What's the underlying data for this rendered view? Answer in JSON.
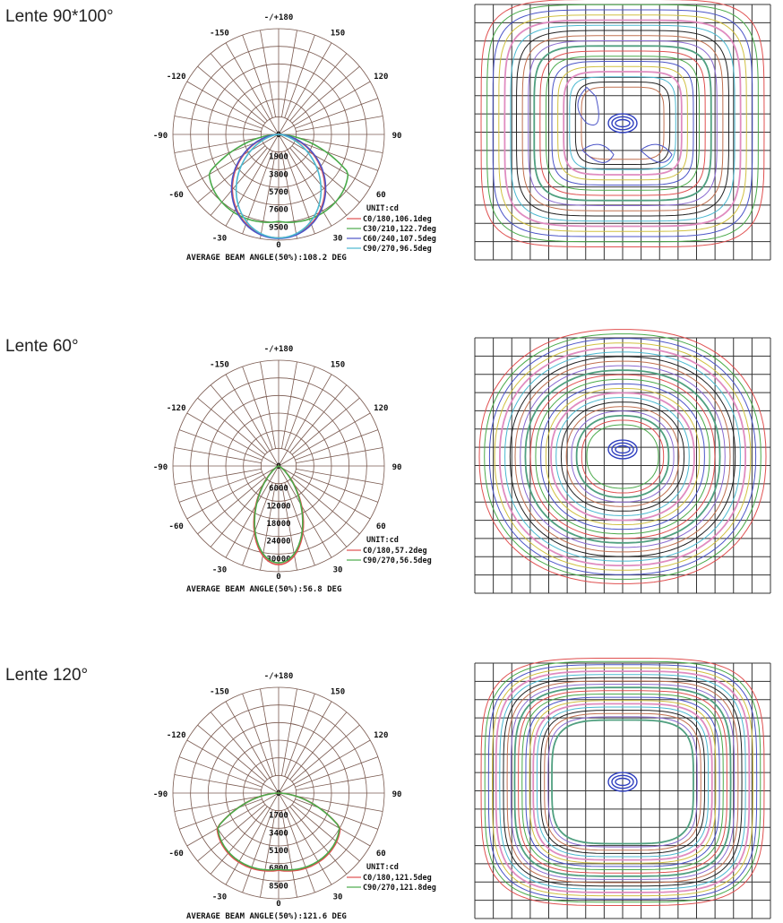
{
  "sections": [
    {
      "title": "Lente 90*100°",
      "chart_data": {
        "type": "polar",
        "angle_labels": [
          "-/+180",
          "150",
          "120",
          "90",
          "60",
          "30",
          "0",
          "-30",
          "-60",
          "-90",
          "-120",
          "-150"
        ],
        "radial_ticks": [
          "0",
          "1900",
          "3800",
          "5700",
          "7600",
          "9500"
        ],
        "rmax": 9500,
        "unit_label": "UNIT:cd",
        "series": [
          {
            "name": "C0/180,106.1deg",
            "color": "#e05050",
            "beam": 106.1,
            "peak": 9300
          },
          {
            "name": "C30/210,122.7deg",
            "color": "#4aaa4a",
            "beam": 122.7,
            "peak": 9200
          },
          {
            "name": "C60/240,107.5deg",
            "color": "#4c55c8",
            "beam": 107.5,
            "peak": 9350
          },
          {
            "name": "C90/270,96.5deg",
            "color": "#4ab8d0",
            "beam": 96.5,
            "peak": 9300
          }
        ],
        "footer": "AVERAGE BEAM ANGLE(50%):108.2 DEG"
      },
      "iso_data": {
        "type": "isolux",
        "shape": "rect-rounded",
        "grid": true
      }
    },
    {
      "title": "Lente 60°",
      "chart_data": {
        "type": "polar",
        "angle_labels": [
          "-/+180",
          "150",
          "120",
          "90",
          "60",
          "30",
          "0",
          "-30",
          "-60",
          "-90",
          "-120",
          "-150"
        ],
        "radial_ticks": [
          "0",
          "6000",
          "12000",
          "18000",
          "24000",
          "30000"
        ],
        "rmax": 30000,
        "unit_label": "UNIT:cd",
        "series": [
          {
            "name": "C0/180,57.2deg",
            "color": "#e05050",
            "beam": 57.2,
            "peak": 28000
          },
          {
            "name": "C90/270,56.5deg",
            "color": "#4aaa4a",
            "beam": 56.5,
            "peak": 27500
          }
        ],
        "footer": "AVERAGE BEAM ANGLE(50%):56.8 DEG"
      },
      "iso_data": {
        "type": "isolux",
        "shape": "oval",
        "grid": true
      }
    },
    {
      "title": "Lente 120°",
      "chart_data": {
        "type": "polar",
        "angle_labels": [
          "-/+180",
          "150",
          "120",
          "90",
          "60",
          "30",
          "0",
          "-30",
          "-60",
          "-90",
          "-120",
          "-150"
        ],
        "radial_ticks": [
          "0",
          "1700",
          "3400",
          "5100",
          "6800",
          "8500"
        ],
        "rmax": 8500,
        "unit_label": "UNIT:cd",
        "series": [
          {
            "name": "C0/180,121.5deg",
            "color": "#e05050",
            "beam": 121.5,
            "peak": 7300
          },
          {
            "name": "C90/270,121.8deg",
            "color": "#4aaa4a",
            "beam": 121.8,
            "peak": 7200
          }
        ],
        "footer": "AVERAGE BEAM ANGLE(50%):121.6 DEG"
      },
      "iso_data": {
        "type": "isolux",
        "shape": "rounded-square-wide",
        "grid": true
      }
    }
  ]
}
